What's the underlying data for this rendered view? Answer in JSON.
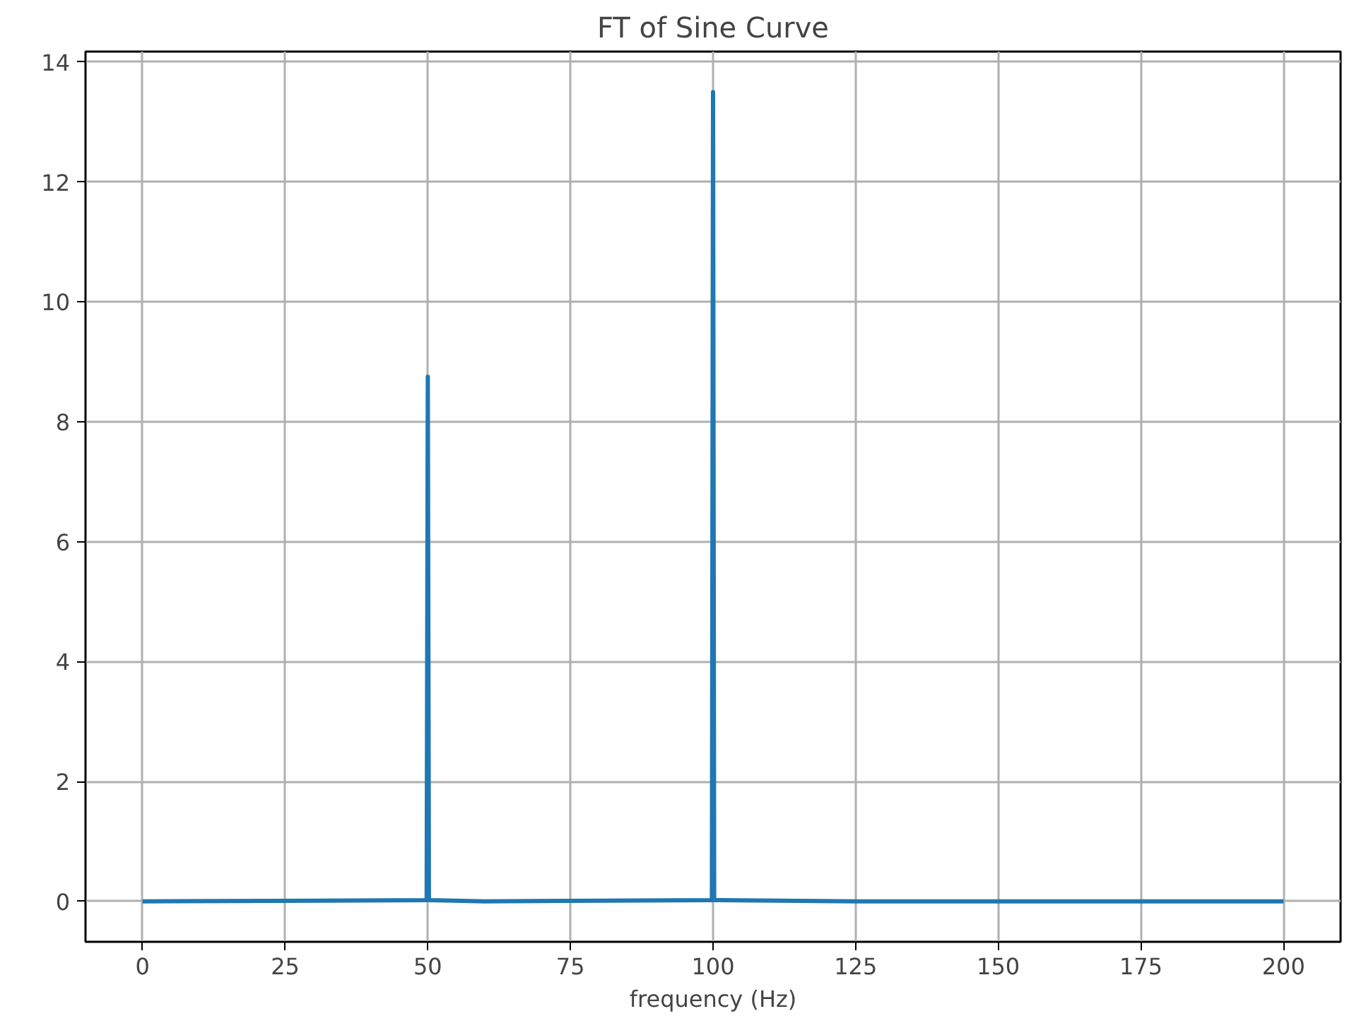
{
  "chart_data": {
    "type": "line",
    "title": "FT of Sine Curve",
    "xlabel": "frequency (Hz)",
    "x": [
      0,
      25,
      49.8,
      50,
      50.2,
      60,
      75,
      99.8,
      100,
      100.2,
      125,
      150,
      200
    ],
    "series": [
      {
        "color": "#1f77b4",
        "values": [
          0,
          0.01,
          0.02,
          8.75,
          0.02,
          0,
          0.01,
          0.02,
          13.5,
          0.02,
          0,
          0,
          0
        ]
      }
    ],
    "xlim": [
      -10,
      210
    ],
    "ylim": [
      -0.675,
      14.175
    ],
    "xticks": [
      0,
      25,
      50,
      75,
      100,
      125,
      150,
      175,
      200
    ],
    "yticks": [
      0,
      2,
      4,
      6,
      8,
      10,
      12,
      14
    ],
    "grid": true,
    "line_style": "solid"
  }
}
